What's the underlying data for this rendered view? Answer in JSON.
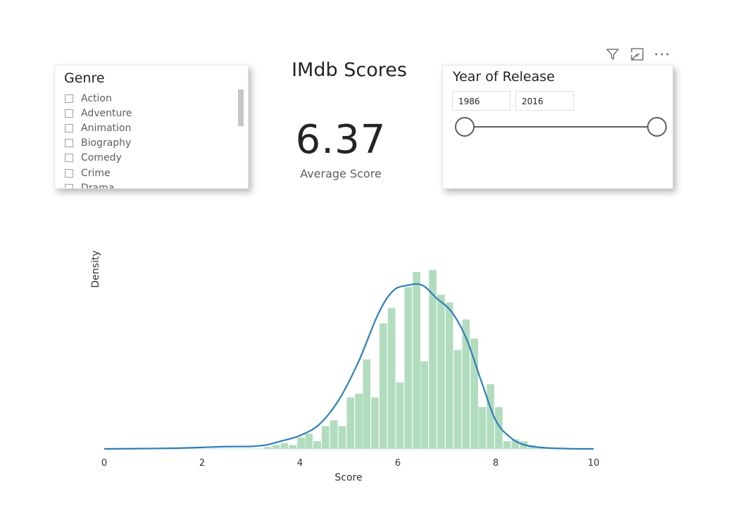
{
  "genre_slicer": {
    "header": "Genre",
    "items": [
      "Action",
      "Adventure",
      "Animation",
      "Biography",
      "Comedy",
      "Crime",
      "Drama"
    ]
  },
  "report": {
    "title": "IMdb Scores"
  },
  "kpi": {
    "value": "6.37",
    "label": "Average Score"
  },
  "year_slicer": {
    "header": "Year of Release",
    "start": "1986",
    "end": "2016"
  },
  "visual_header": {
    "icons": [
      "filter-icon",
      "focus-mode-icon",
      "more-options-icon"
    ]
  },
  "chart_data": {
    "type": "bar",
    "xlabel": "Score",
    "ylabel": "Density",
    "xlim": [
      0,
      10
    ],
    "xticks": [
      0,
      2,
      4,
      6,
      8,
      10
    ],
    "grid": false,
    "bar_color": "#b2dcbe",
    "curve_color": "#2e7fb8",
    "histogram": {
      "bin_width": 0.168,
      "bins": [
        {
          "x": 3.35,
          "density": 0.01
        },
        {
          "x": 3.52,
          "density": 0.02
        },
        {
          "x": 3.69,
          "density": 0.03
        },
        {
          "x": 3.86,
          "density": 0.02
        },
        {
          "x": 4.03,
          "density": 0.06
        },
        {
          "x": 4.19,
          "density": 0.08
        },
        {
          "x": 4.36,
          "density": 0.04
        },
        {
          "x": 4.53,
          "density": 0.12
        },
        {
          "x": 4.7,
          "density": 0.15
        },
        {
          "x": 4.87,
          "density": 0.12
        },
        {
          "x": 5.04,
          "density": 0.27
        },
        {
          "x": 5.21,
          "density": 0.29
        },
        {
          "x": 5.37,
          "density": 0.47
        },
        {
          "x": 5.54,
          "density": 0.27
        },
        {
          "x": 5.71,
          "density": 0.66
        },
        {
          "x": 5.88,
          "density": 0.74
        },
        {
          "x": 6.05,
          "density": 0.35
        },
        {
          "x": 6.22,
          "density": 0.85
        },
        {
          "x": 6.39,
          "density": 0.93
        },
        {
          "x": 6.55,
          "density": 0.46
        },
        {
          "x": 6.72,
          "density": 0.94
        },
        {
          "x": 6.89,
          "density": 0.81
        },
        {
          "x": 7.06,
          "density": 0.77
        },
        {
          "x": 7.23,
          "density": 0.52
        },
        {
          "x": 7.4,
          "density": 0.68
        },
        {
          "x": 7.57,
          "density": 0.58
        },
        {
          "x": 7.73,
          "density": 0.22
        },
        {
          "x": 7.9,
          "density": 0.34
        },
        {
          "x": 8.07,
          "density": 0.22
        },
        {
          "x": 8.24,
          "density": 0.04
        },
        {
          "x": 8.41,
          "density": 0.05
        },
        {
          "x": 8.58,
          "density": 0.04
        },
        {
          "x": 8.75,
          "density": 0.02
        },
        {
          "x": 8.92,
          "density": 0.01
        }
      ]
    },
    "kde": {
      "x": [
        0,
        1,
        1.5,
        2,
        2.5,
        3,
        3.3,
        3.6,
        4.0,
        4.4,
        4.8,
        5.2,
        5.6,
        5.9,
        6.2,
        6.5,
        6.8,
        7.1,
        7.4,
        7.7,
        8.0,
        8.3,
        8.6,
        9.0,
        9.5,
        10
      ],
      "y": [
        0.0,
        0.002,
        0.004,
        0.008,
        0.012,
        0.013,
        0.02,
        0.04,
        0.07,
        0.13,
        0.26,
        0.46,
        0.71,
        0.83,
        0.86,
        0.86,
        0.79,
        0.72,
        0.58,
        0.36,
        0.15,
        0.06,
        0.02,
        0.006,
        0.001,
        0.0
      ]
    }
  }
}
